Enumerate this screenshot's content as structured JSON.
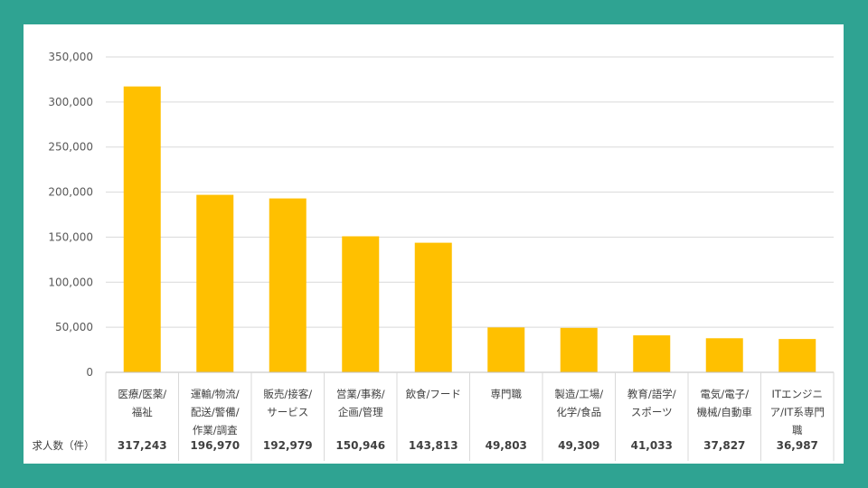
{
  "chart_data": {
    "type": "bar",
    "categories": [
      [
        "医療/医薬/",
        "福祉"
      ],
      [
        "運輸/物流/",
        "配送/警備/",
        "作業/調査"
      ],
      [
        "販売/接客/",
        "サービス"
      ],
      [
        "営業/事務/",
        "企画/管理"
      ],
      [
        "飲食/フード"
      ],
      [
        "専門職"
      ],
      [
        "製造/工場/",
        "化学/食品"
      ],
      [
        "教育/語学/",
        "スポーツ"
      ],
      [
        "電気/電子/",
        "機械/自動車"
      ],
      [
        "ITエンジニ",
        "ア/IT系専門",
        "職"
      ]
    ],
    "values": [
      317243,
      196970,
      192979,
      150946,
      143813,
      49803,
      49309,
      41033,
      37827,
      36987
    ],
    "table": {
      "row_header": "求人数（件）",
      "values": [
        "317,243",
        "196,970",
        "192,979",
        "150,946",
        "143,813",
        "49,803",
        "49,309",
        "41,033",
        "37,827",
        "36,987"
      ]
    },
    "ylim": [
      0,
      350000
    ],
    "yticks": [
      0,
      50000,
      100000,
      150000,
      200000,
      250000,
      300000,
      350000
    ],
    "ytick_labels": [
      "0",
      "50,000",
      "100,000",
      "150,000",
      "200,000",
      "250,000",
      "300,000",
      "350,000"
    ],
    "grid": true,
    "colors": {
      "bar": "#ffc000",
      "grid": "#d9d9d9",
      "axis": "#bfbfbf",
      "background": "#2fa392"
    }
  }
}
